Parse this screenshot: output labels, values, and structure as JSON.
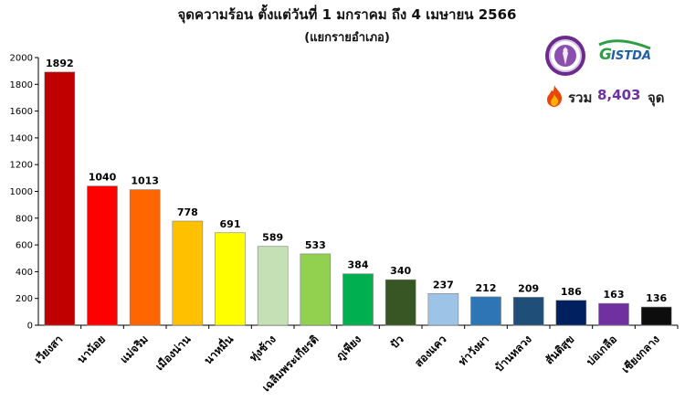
{
  "title": "จุดความร้อน ตั้งแต่วันที่ 1 มกราคม ถึง 4 เมษายน 2566",
  "subtitle": "(แยกรายอำเภอ)",
  "logos": {
    "left": "seal-logo",
    "right": "GISTDA"
  },
  "total": {
    "icon": "fire-icon",
    "label": "รวม",
    "value": "8,403",
    "unit": "จุด",
    "value_color": "#7030a0"
  },
  "chart_data": {
    "type": "bar",
    "title": "จุดความร้อน ตั้งแต่วันที่ 1 มกราคม ถึง 4 เมษายน 2566",
    "subtitle": "(แยกรายอำเภอ)",
    "categories": [
      "เวียงสา",
      "นาน้อย",
      "แม่จริม",
      "เมืองน่าน",
      "นาหมื่น",
      "ทุ่งช้าง",
      "เฉลิมพระเกียรติ",
      "ภูเพียง",
      "ปัว",
      "สองแคว",
      "ท่าวังผา",
      "บ้านหลวง",
      "สันติสุข",
      "บ่อเกลือ",
      "เชียงกลาง"
    ],
    "values": [
      1892,
      1040,
      1013,
      778,
      691,
      589,
      533,
      384,
      340,
      237,
      212,
      209,
      186,
      163,
      136
    ],
    "colors": [
      "#c00000",
      "#ff0000",
      "#ff6600",
      "#ffc000",
      "#ffff00",
      "#c5e0b4",
      "#92d050",
      "#00b050",
      "#375623",
      "#9dc3e6",
      "#2e75b6",
      "#1f4e79",
      "#002060",
      "#7030a0",
      "#0d0d0d"
    ],
    "yticks": [
      0,
      200,
      400,
      600,
      800,
      1000,
      1200,
      1400,
      1600,
      1800,
      2000
    ],
    "ylim": [
      0,
      2000
    ],
    "grid": false,
    "data_labels": true,
    "xlabel": "",
    "ylabel": ""
  }
}
